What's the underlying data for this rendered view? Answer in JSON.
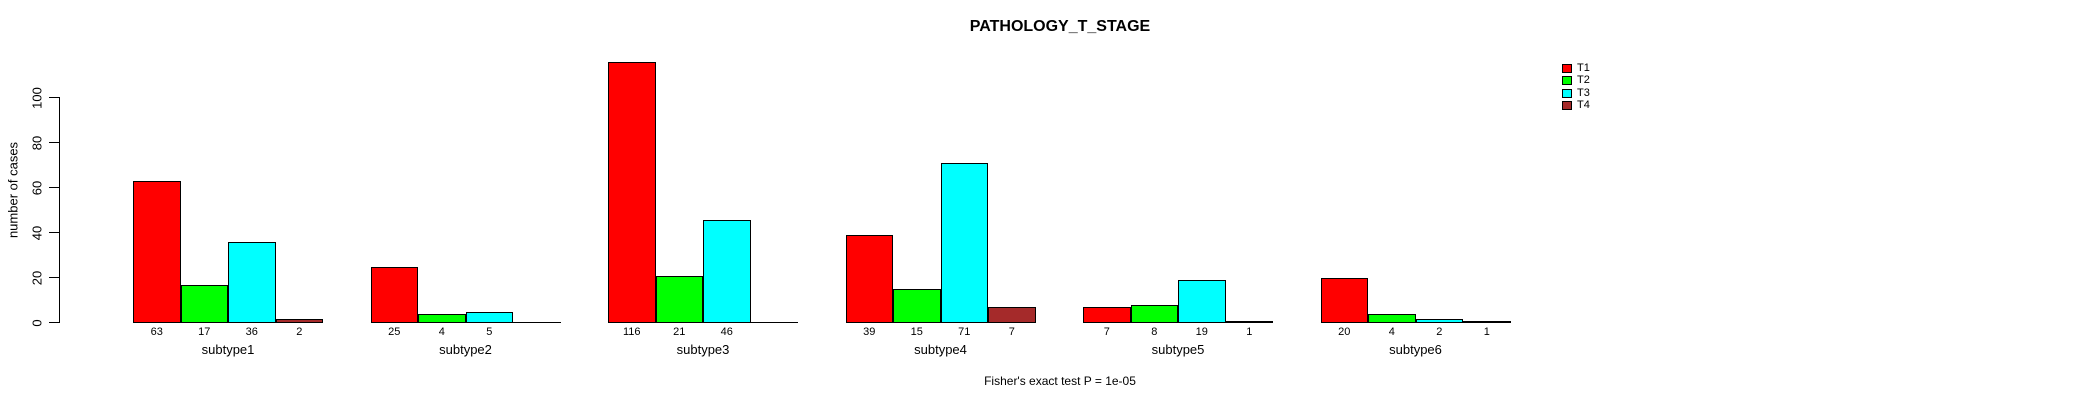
{
  "chart_data": {
    "type": "bar",
    "title": "PATHOLOGY_T_STAGE",
    "xlabel": "",
    "ylabel": "number of cases",
    "annotation": "Fisher's exact test P = 1e-05",
    "categories": [
      "subtype1",
      "subtype2",
      "subtype3",
      "subtype4",
      "subtype5",
      "subtype6"
    ],
    "series": [
      {
        "name": "T1",
        "color": "#FF0000",
        "values": [
          63,
          25,
          116,
          39,
          7,
          20
        ]
      },
      {
        "name": "T2",
        "color": "#00FF00",
        "values": [
          17,
          4,
          21,
          15,
          8,
          4
        ]
      },
      {
        "name": "T3",
        "color": "#00FFFF",
        "values": [
          36,
          5,
          46,
          71,
          19,
          2
        ]
      },
      {
        "name": "T4",
        "color": "#A52A2A",
        "values": [
          2,
          0,
          0,
          7,
          1,
          1
        ]
      }
    ],
    "bar_value_labels": [
      [
        "63",
        "17",
        "36",
        "2"
      ],
      [
        "25",
        "4",
        "5",
        ""
      ],
      [
        "116",
        "21",
        "46",
        ""
      ],
      [
        "39",
        "15",
        "71",
        "7"
      ],
      [
        "7",
        "8",
        "19",
        "1"
      ],
      [
        "20",
        "4",
        "2",
        "1"
      ]
    ],
    "yticks": [
      "0",
      "20",
      "40",
      "60",
      "80",
      "100"
    ],
    "ylim": [
      0,
      116
    ],
    "grid": false,
    "legend_position": "top-right",
    "legend": {
      "items": [
        "T1",
        "T2",
        "T3",
        "T4"
      ]
    }
  }
}
